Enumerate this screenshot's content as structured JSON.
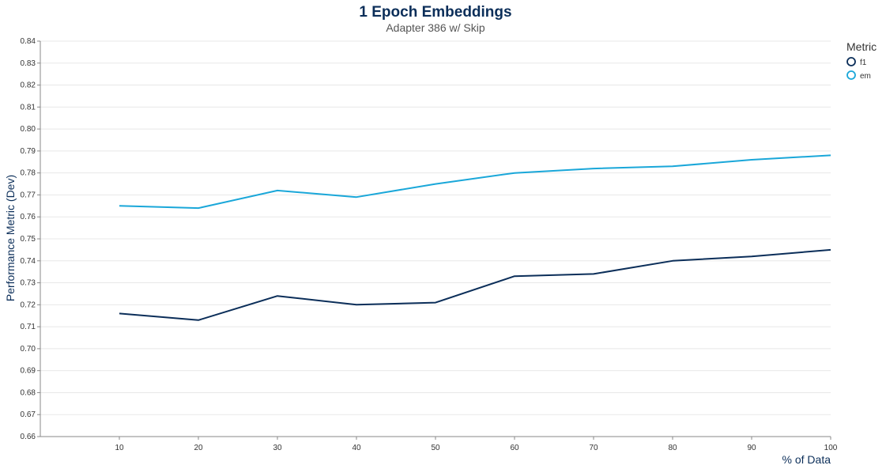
{
  "chart_data": {
    "type": "line",
    "title": "1 Epoch Embeddings",
    "subtitle": "Adapter 386 w/ Skip",
    "xlabel": "% of Data",
    "ylabel": "Performance Metric (Dev)",
    "x": [
      10,
      20,
      30,
      40,
      50,
      60,
      70,
      80,
      90,
      100
    ],
    "xticks": [
      "10",
      "20",
      "30",
      "40",
      "50",
      "60",
      "70",
      "80",
      "90",
      "100"
    ],
    "xlim": [
      0,
      100
    ],
    "ylim": [
      0.66,
      0.84
    ],
    "yticks": [
      "0.66",
      "0.67",
      "0.68",
      "0.69",
      "0.70",
      "0.71",
      "0.72",
      "0.73",
      "0.74",
      "0.75",
      "0.76",
      "0.77",
      "0.78",
      "0.79",
      "0.80",
      "0.81",
      "0.82",
      "0.83",
      "0.84"
    ],
    "grid": true,
    "legend": {
      "title": "Metric",
      "position": "top-right"
    },
    "series": [
      {
        "name": "f1",
        "color": "#0b2e59",
        "values": [
          0.716,
          0.713,
          0.724,
          0.72,
          0.721,
          0.733,
          0.734,
          0.74,
          0.742,
          0.745
        ]
      },
      {
        "name": "em",
        "color": "#1aa7d9",
        "values": [
          0.765,
          0.764,
          0.772,
          0.769,
          0.775,
          0.78,
          0.782,
          0.783,
          0.786,
          0.788
        ]
      }
    ]
  }
}
